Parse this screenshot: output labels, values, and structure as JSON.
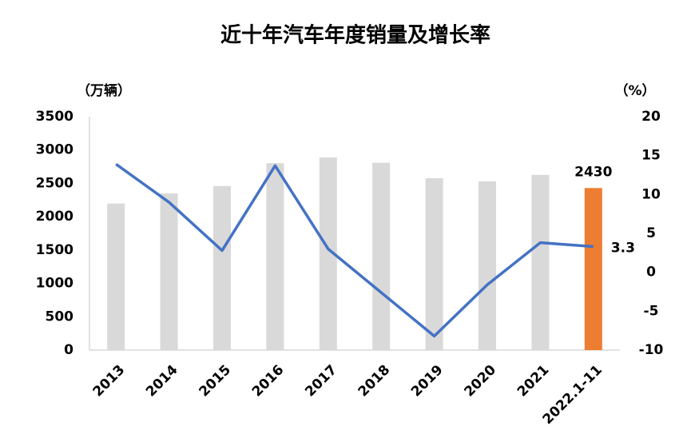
{
  "chart_data": {
    "type": "bar",
    "title": "近十年汽车年度销量及增长率",
    "y_label": "（万辆）",
    "y2_label": "（%）",
    "categories": [
      "2013",
      "2014",
      "2015",
      "2016",
      "2017",
      "2018",
      "2019",
      "2020",
      "2021",
      "2022.1-11"
    ],
    "series": [
      {
        "type": "bar",
        "colors": [
          "#d9d9d9",
          "#d9d9d9",
          "#d9d9d9",
          "#d9d9d9",
          "#d9d9d9",
          "#d9d9d9",
          "#d9d9d9",
          "#d9d9d9",
          "#d9d9d9",
          "#ed7d31"
        ],
        "values": [
          2198,
          2349,
          2460,
          2803,
          2888,
          2808,
          2577,
          2531,
          2627,
          2430
        ],
        "value_labels": [
          null,
          null,
          null,
          null,
          null,
          null,
          null,
          null,
          null,
          "2430"
        ]
      },
      {
        "type": "line",
        "axis": "y2",
        "color": "#4472c4",
        "values": [
          13.9,
          9.0,
          2.8,
          13.7,
          3.0,
          -2.6,
          -8.2,
          -1.6,
          3.8,
          3.3
        ],
        "value_labels": [
          null,
          null,
          null,
          null,
          null,
          null,
          null,
          null,
          null,
          "3.3"
        ]
      }
    ],
    "ylim": [
      0,
      3500
    ],
    "yticks": [
      0,
      500,
      1000,
      1500,
      2000,
      2500,
      3000,
      3500
    ],
    "y2lim": [
      -10,
      20
    ],
    "y2ticks": [
      -10,
      -5,
      0,
      5,
      10,
      15,
      20
    ]
  }
}
